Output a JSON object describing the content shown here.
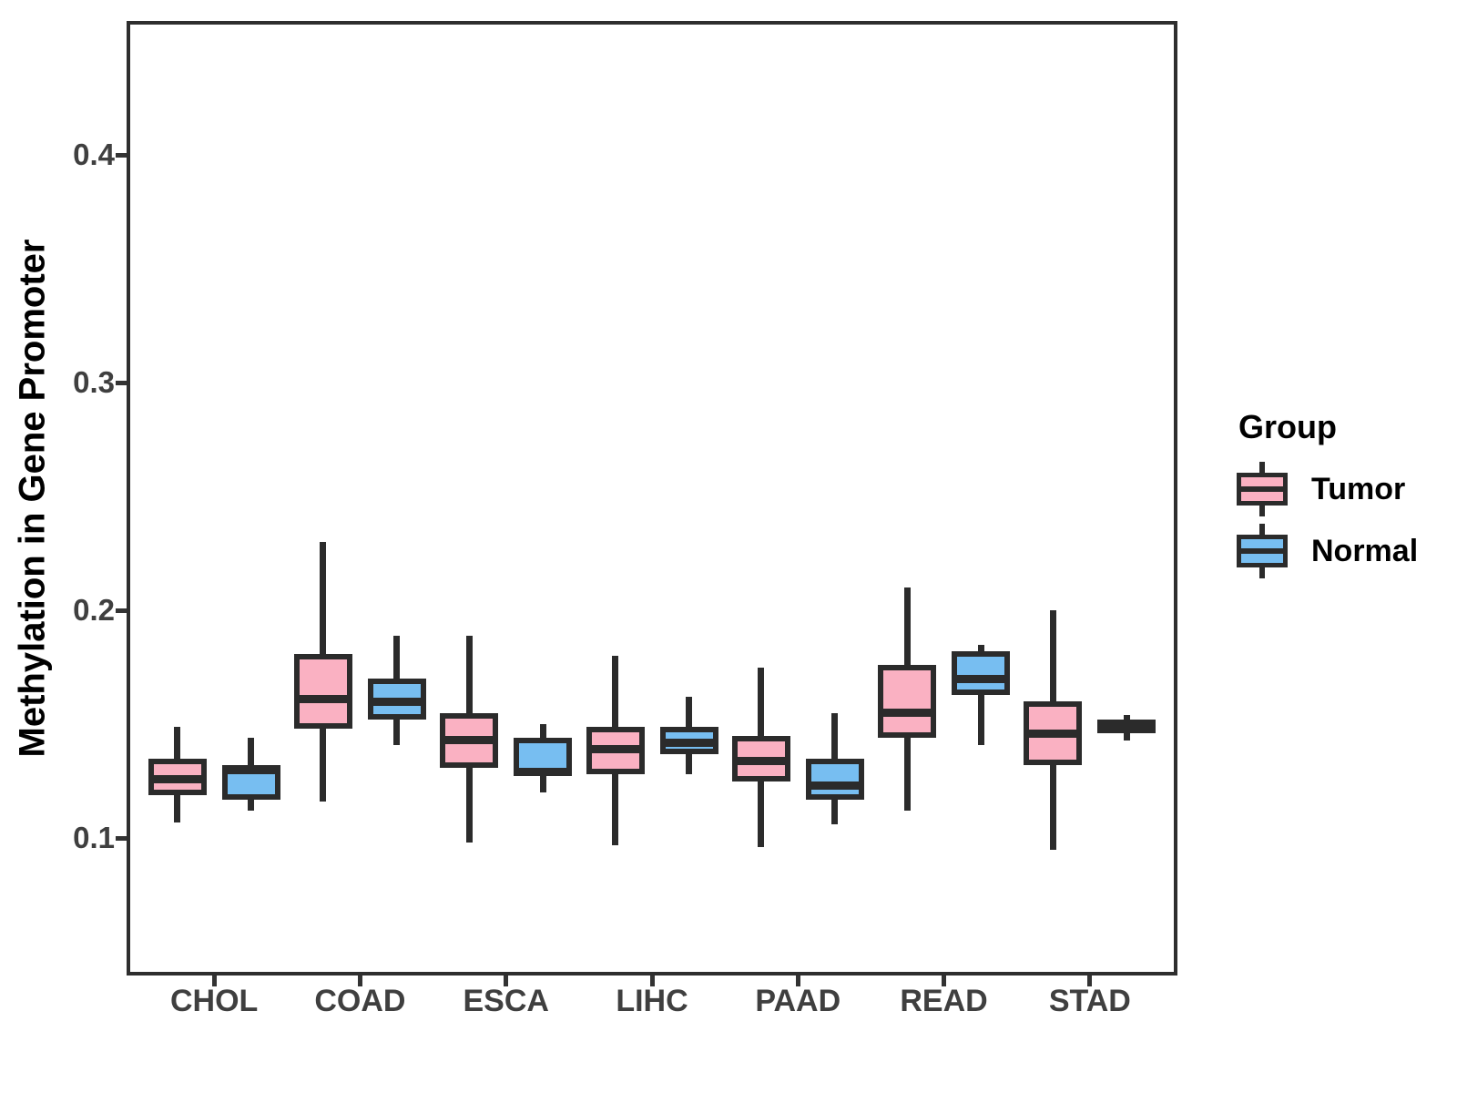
{
  "chart_data": {
    "type": "grouped_boxplot",
    "title": "",
    "xlabel": "",
    "ylabel": "Methylation in Gene Promoter",
    "categories": [
      "CHOL",
      "COAD",
      "ESCA",
      "LIHC",
      "PAAD",
      "READ",
      "STAD"
    ],
    "y_ticks": [
      0.1,
      0.2,
      0.3,
      0.4
    ],
    "ylim": [
      0.04,
      0.46
    ],
    "grid": "off",
    "legend": {
      "title": "Group",
      "position": "right"
    },
    "series": [
      {
        "name": "Tumor",
        "color": "#FAB1C2",
        "boxes": [
          {
            "category": "CHOL",
            "whisker_low": 0.107,
            "q1": 0.119,
            "median": 0.126,
            "q3": 0.135,
            "whisker_high": 0.149
          },
          {
            "category": "COAD",
            "whisker_low": 0.116,
            "q1": 0.148,
            "median": 0.161,
            "q3": 0.181,
            "whisker_high": 0.23
          },
          {
            "category": "ESCA",
            "whisker_low": 0.098,
            "q1": 0.131,
            "median": 0.143,
            "q3": 0.155,
            "whisker_high": 0.189
          },
          {
            "category": "LIHC",
            "whisker_low": 0.097,
            "q1": 0.128,
            "median": 0.139,
            "q3": 0.149,
            "whisker_high": 0.18
          },
          {
            "category": "PAAD",
            "whisker_low": 0.096,
            "q1": 0.125,
            "median": 0.134,
            "q3": 0.145,
            "whisker_high": 0.175
          },
          {
            "category": "READ",
            "whisker_low": 0.112,
            "q1": 0.144,
            "median": 0.155,
            "q3": 0.176,
            "whisker_high": 0.21
          },
          {
            "category": "STAD",
            "whisker_low": 0.095,
            "q1": 0.132,
            "median": 0.146,
            "q3": 0.16,
            "whisker_high": 0.2
          }
        ]
      },
      {
        "name": "Normal",
        "color": "#77BEF1",
        "boxes": [
          {
            "category": "CHOL",
            "whisker_low": 0.112,
            "q1": 0.117,
            "median": 0.13,
            "q3": 0.132,
            "whisker_high": 0.144
          },
          {
            "category": "COAD",
            "whisker_low": 0.141,
            "q1": 0.152,
            "median": 0.16,
            "q3": 0.17,
            "whisker_high": 0.189
          },
          {
            "category": "ESCA",
            "whisker_low": 0.12,
            "q1": 0.128,
            "median": 0.129,
            "q3": 0.144,
            "whisker_high": 0.15
          },
          {
            "category": "LIHC",
            "whisker_low": 0.128,
            "q1": 0.137,
            "median": 0.142,
            "q3": 0.149,
            "whisker_high": 0.162
          },
          {
            "category": "PAAD",
            "whisker_low": 0.106,
            "q1": 0.117,
            "median": 0.123,
            "q3": 0.135,
            "whisker_high": 0.155
          },
          {
            "category": "READ",
            "whisker_low": 0.141,
            "q1": 0.163,
            "median": 0.17,
            "q3": 0.182,
            "whisker_high": 0.185
          },
          {
            "category": "STAD",
            "whisker_low": 0.143,
            "q1": 0.146,
            "median": 0.149,
            "q3": 0.152,
            "whisker_high": 0.154
          }
        ]
      }
    ]
  },
  "styles": {
    "box_outline": "#2B2B2B",
    "axis_text": "#3F3F3F",
    "panel_border": "#2E2E2E",
    "background": "#FFFFFF"
  }
}
